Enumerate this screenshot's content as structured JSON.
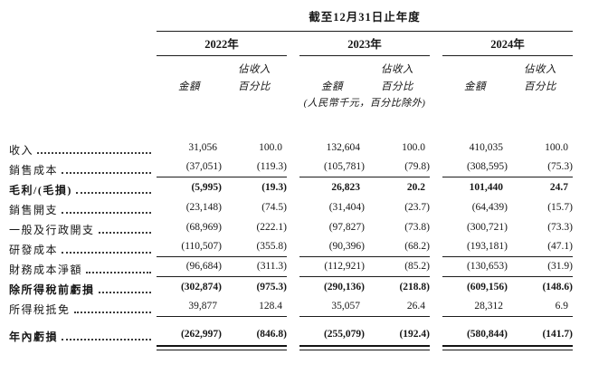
{
  "title": "截至12月31日止年度",
  "currency_note": "(人民幣千元，百分比除外)",
  "years": [
    "2022年",
    "2023年",
    "2024年"
  ],
  "col_headers": {
    "amount": "金額",
    "pct_line1": "佔收入",
    "pct_line2": "百分比"
  },
  "rows": [
    {
      "label": "收入",
      "bold": false,
      "rule_after": null,
      "values": [
        "31,056",
        "100.0",
        "132,604",
        "100.0",
        "410,035",
        "100.0"
      ]
    },
    {
      "label": "銷售成本",
      "bold": false,
      "rule_after": "single",
      "values": [
        "(37,051)",
        "(119.3)",
        "(105,781)",
        "(79.8)",
        "(308,595)",
        "(75.3)"
      ]
    },
    {
      "label": "毛利/(毛損)",
      "bold": true,
      "rule_after": null,
      "values": [
        "(5,995)",
        "(19.3)",
        "26,823",
        "20.2",
        "101,440",
        "24.7"
      ]
    },
    {
      "label": "銷售開支",
      "bold": false,
      "rule_after": null,
      "values": [
        "(23,148)",
        "(74.5)",
        "(31,404)",
        "(23.7)",
        "(64,439)",
        "(15.7)"
      ]
    },
    {
      "label": "一般及行政開支",
      "bold": false,
      "rule_after": null,
      "values": [
        "(68,969)",
        "(222.1)",
        "(97,827)",
        "(73.8)",
        "(300,721)",
        "(73.3)"
      ]
    },
    {
      "label": "研發成本",
      "bold": false,
      "rule_after": "single",
      "values": [
        "(110,507)",
        "(355.8)",
        "(90,396)",
        "(68.2)",
        "(193,181)",
        "(47.1)"
      ]
    },
    {
      "label": "財務成本淨額",
      "bold": false,
      "rule_after": "single",
      "values": [
        "(96,684)",
        "(311.3)",
        "(112,921)",
        "(85.2)",
        "(130,653)",
        "(31.9)"
      ]
    },
    {
      "label": "除所得稅前虧損",
      "bold": true,
      "rule_after": null,
      "values": [
        "(302,874)",
        "(975.3)",
        "(290,136)",
        "(218.8)",
        "(609,156)",
        "(148.6)"
      ]
    },
    {
      "label": "所得稅抵免",
      "bold": false,
      "rule_after": "single",
      "values": [
        "39,877",
        "128.4",
        "35,057",
        "26.4",
        "28,312",
        "6.9"
      ]
    },
    {
      "label": "年內虧損",
      "bold": true,
      "rule_after": "double",
      "values": [
        "(262,997)",
        "(846.8)",
        "(255,079)",
        "(192.4)",
        "(580,844)",
        "(141.7)"
      ]
    }
  ]
}
